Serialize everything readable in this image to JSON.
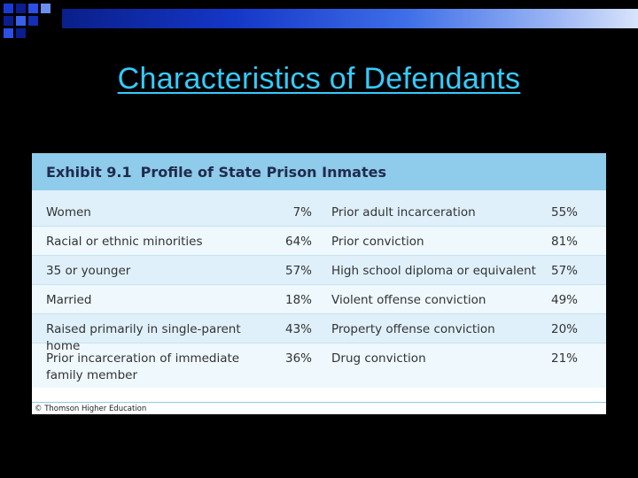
{
  "slide": {
    "title": "Characteristics of Defendants",
    "colors": {
      "background": "#000000",
      "title": "#33ccff",
      "band": "#1537c8",
      "exhibit_header": "#8fcbea",
      "exhibit_body": "#dff0fa"
    }
  },
  "exhibit": {
    "label": "Exhibit 9.1",
    "title": "Profile of State Prison Inmates",
    "rows": [
      {
        "left_label": "Women",
        "left_value": "7%",
        "right_label": "Prior adult incarceration",
        "right_value": "55%"
      },
      {
        "left_label": "Racial or ethnic minorities",
        "left_value": "64%",
        "right_label": "Prior conviction",
        "right_value": "81%"
      },
      {
        "left_label": "35 or younger",
        "left_value": "57%",
        "right_label": "High school diploma or equivalent",
        "right_value": "57%"
      },
      {
        "left_label": "Married",
        "left_value": "18%",
        "right_label": "Violent offense conviction",
        "right_value": "49%"
      },
      {
        "left_label": "Raised primarily in single-parent home",
        "left_value": "43%",
        "right_label": "Property offense conviction",
        "right_value": "20%"
      },
      {
        "left_label": "Prior incarceration of immediate family member",
        "left_value": "36%",
        "right_label": "Drug conviction",
        "right_value": "21%"
      }
    ],
    "footer": "© Thomson Higher Education"
  }
}
